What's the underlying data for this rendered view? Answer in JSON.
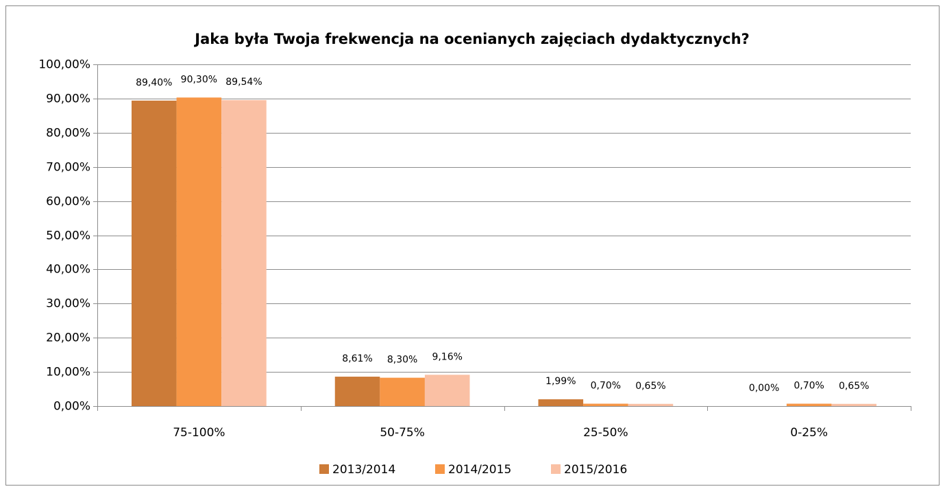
{
  "chart_data": {
    "type": "bar",
    "title": "Jaka była Twoja frekwencja na ocenianych zajęciach dydaktycznych?",
    "categories": [
      "75-100%",
      "50-75%",
      "25-50%",
      "0-25%"
    ],
    "series": [
      {
        "name": "2013/2014",
        "color": "#cc7b38",
        "values": [
          89.4,
          8.61,
          1.99,
          0.0
        ],
        "value_labels": [
          "89,40%",
          "8,61%",
          "1,99%",
          "0,00%"
        ]
      },
      {
        "name": "2014/2015",
        "color": "#f79646",
        "values": [
          90.3,
          8.3,
          0.7,
          0.7
        ],
        "value_labels": [
          "90,30%",
          "8,30%",
          "0,70%",
          "0,70%"
        ]
      },
      {
        "name": "2015/2016",
        "color": "#fac0a4",
        "values": [
          89.54,
          9.16,
          0.65,
          0.65
        ],
        "value_labels": [
          "89,54%",
          "9,16%",
          "0,65%",
          "0,65%"
        ]
      }
    ],
    "ylim": [
      0,
      100
    ],
    "yticks": [
      {
        "value": 0,
        "label": "0,00%"
      },
      {
        "value": 10,
        "label": "10,00%"
      },
      {
        "value": 20,
        "label": "20,00%"
      },
      {
        "value": 30,
        "label": "30,00%"
      },
      {
        "value": 40,
        "label": "40,00%"
      },
      {
        "value": 50,
        "label": "50,00%"
      },
      {
        "value": 60,
        "label": "60,00%"
      },
      {
        "value": 70,
        "label": "70,00%"
      },
      {
        "value": 80,
        "label": "80,00%"
      },
      {
        "value": 90,
        "label": "90,00%"
      },
      {
        "value": 100,
        "label": "100,00%"
      }
    ],
    "grid": true,
    "legend": "bottom"
  }
}
